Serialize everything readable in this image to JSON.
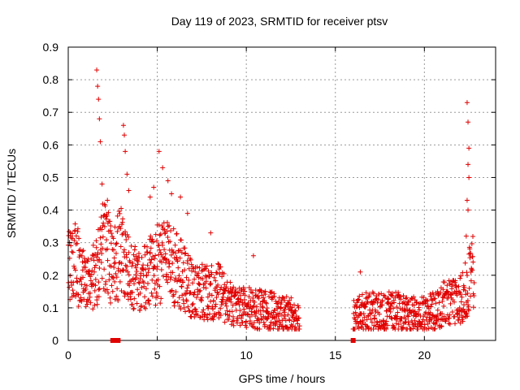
{
  "chart_data": {
    "type": "scatter",
    "title": "Day 119 of 2023, SRMTID for receiver ptsv",
    "xlabel": "GPS time / hours",
    "ylabel": "SRMTID / TECUs",
    "xlim": [
      0,
      24
    ],
    "ylim": [
      0,
      0.9
    ],
    "x_ticks": [
      0,
      5,
      10,
      15,
      20
    ],
    "x_tick_labels": [
      "0",
      "5",
      "10",
      "15",
      "20"
    ],
    "y_ticks": [
      0,
      0.1,
      0.2,
      0.3,
      0.4,
      0.5,
      0.6,
      0.7,
      0.8,
      0.9
    ],
    "y_tick_labels": [
      "0",
      "0.1",
      "0.2",
      "0.3",
      "0.4",
      "0.5",
      "0.6",
      "0.7",
      "0.8",
      "0.9"
    ],
    "grid": true,
    "marker": "plus",
    "series": [
      {
        "name": "SRMTID",
        "color": "#e00000",
        "trend": [
          [
            0.0,
            0.22
          ],
          [
            0.5,
            0.24
          ],
          [
            1.0,
            0.15
          ],
          [
            1.5,
            0.2
          ],
          [
            2.0,
            0.3
          ],
          [
            2.5,
            0.22
          ],
          [
            3.0,
            0.28
          ],
          [
            3.5,
            0.2
          ],
          [
            4.0,
            0.18
          ],
          [
            4.5,
            0.2
          ],
          [
            5.0,
            0.24
          ],
          [
            5.5,
            0.24
          ],
          [
            6.0,
            0.22
          ],
          [
            6.5,
            0.19
          ],
          [
            7.0,
            0.16
          ],
          [
            7.5,
            0.15
          ],
          [
            8.0,
            0.15
          ],
          [
            8.5,
            0.15
          ],
          [
            9.0,
            0.12
          ],
          [
            9.5,
            0.1
          ],
          [
            10.0,
            0.1
          ],
          [
            10.5,
            0.1
          ],
          [
            11.0,
            0.09
          ],
          [
            11.5,
            0.09
          ],
          [
            12.0,
            0.08
          ],
          [
            12.5,
            0.08
          ],
          [
            13.0,
            0.06
          ],
          [
            16.0,
            0.07
          ],
          [
            16.5,
            0.09
          ],
          [
            17.0,
            0.09
          ],
          [
            17.5,
            0.09
          ],
          [
            18.0,
            0.09
          ],
          [
            18.5,
            0.09
          ],
          [
            19.0,
            0.08
          ],
          [
            19.5,
            0.08
          ],
          [
            20.0,
            0.08
          ],
          [
            20.5,
            0.09
          ],
          [
            21.0,
            0.11
          ],
          [
            21.5,
            0.12
          ],
          [
            22.0,
            0.12
          ],
          [
            22.5,
            0.18
          ],
          [
            22.8,
            0.22
          ]
        ],
        "spikes": [
          [
            1.6,
            0.83
          ],
          [
            1.65,
            0.78
          ],
          [
            1.7,
            0.74
          ],
          [
            1.75,
            0.68
          ],
          [
            1.8,
            0.61
          ],
          [
            1.9,
            0.48
          ],
          [
            2.1,
            0.38
          ],
          [
            2.2,
            0.43
          ],
          [
            3.1,
            0.66
          ],
          [
            3.15,
            0.63
          ],
          [
            3.2,
            0.58
          ],
          [
            3.3,
            0.51
          ],
          [
            3.4,
            0.46
          ],
          [
            4.6,
            0.44
          ],
          [
            4.8,
            0.47
          ],
          [
            5.1,
            0.58
          ],
          [
            5.3,
            0.53
          ],
          [
            5.6,
            0.49
          ],
          [
            5.8,
            0.45
          ],
          [
            6.3,
            0.44
          ],
          [
            6.7,
            0.39
          ],
          [
            8.0,
            0.33
          ],
          [
            10.4,
            0.26
          ],
          [
            16.4,
            0.21
          ],
          [
            22.4,
            0.73
          ],
          [
            22.45,
            0.67
          ],
          [
            22.5,
            0.59
          ],
          [
            22.45,
            0.54
          ],
          [
            22.5,
            0.5
          ],
          [
            22.4,
            0.43
          ],
          [
            22.45,
            0.4
          ],
          [
            22.35,
            0.32
          ]
        ],
        "outage_markers_x": [
          2.5,
          2.6,
          2.7,
          2.8,
          16.0
        ]
      }
    ]
  }
}
